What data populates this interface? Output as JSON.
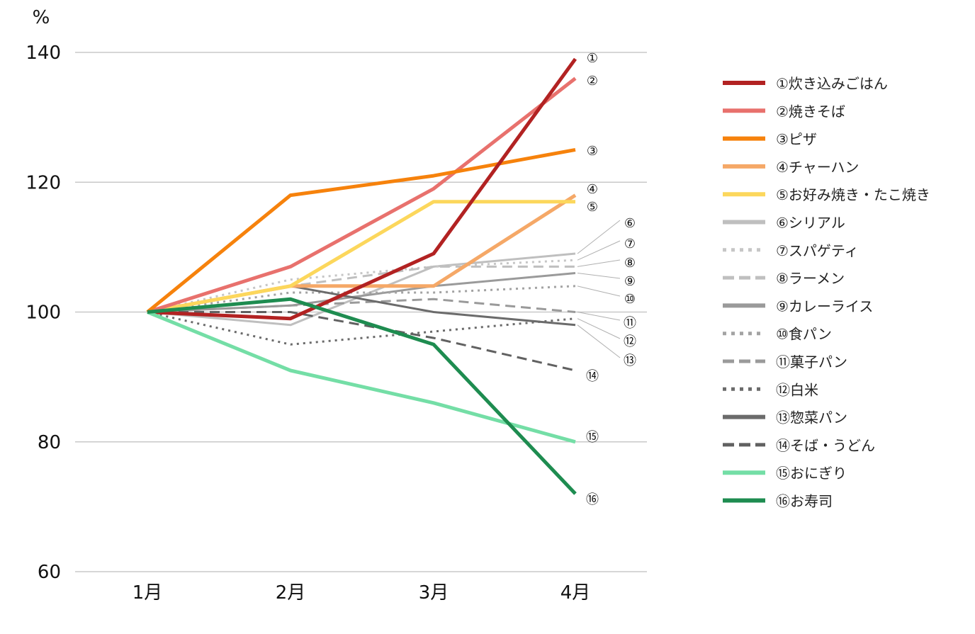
{
  "chart_data": {
    "type": "line",
    "title": "",
    "xlabel": "",
    "ylabel": "%",
    "ylim": [
      60,
      140
    ],
    "yticks": [
      "60",
      "80",
      "100",
      "120",
      "140"
    ],
    "categories": [
      "1月",
      "2月",
      "3月",
      "4月"
    ],
    "grid": "horizontal",
    "legend_position": "right",
    "series": [
      {
        "marker": "①",
        "name": "①炊き込みごはん",
        "values": [
          100,
          99,
          109,
          139
        ],
        "color": "#b22222",
        "style": "solid"
      },
      {
        "marker": "②",
        "name": "②焼きそば",
        "values": [
          100,
          107,
          119,
          136
        ],
        "color": "#e8716d",
        "style": "solid"
      },
      {
        "marker": "③",
        "name": "③ピザ",
        "values": [
          100,
          118,
          121,
          125
        ],
        "color": "#f6820c",
        "style": "solid"
      },
      {
        "marker": "④",
        "name": "④チャーハン",
        "values": [
          100,
          104,
          104,
          118
        ],
        "color": "#f5a867",
        "style": "solid"
      },
      {
        "marker": "⑤",
        "name": "⑤お好み焼き・たこ焼き",
        "values": [
          100,
          104,
          117,
          117
        ],
        "color": "#fcd75c",
        "style": "solid"
      },
      {
        "marker": "⑥",
        "name": "⑥シリアル",
        "values": [
          100,
          98,
          107,
          109
        ],
        "color": "#bfbfbf",
        "style": "solid"
      },
      {
        "marker": "⑦",
        "name": "⑦スパゲティ",
        "values": [
          100,
          105,
          107,
          108
        ],
        "color": "#c6c6c6",
        "style": "dotted"
      },
      {
        "marker": "⑧",
        "name": "⑧ラーメン",
        "values": [
          100,
          104,
          107,
          107
        ],
        "color": "#bfbfbf",
        "style": "dashed"
      },
      {
        "marker": "⑨",
        "name": "⑨カレーライス",
        "values": [
          100,
          101,
          104,
          106
        ],
        "color": "#9a9a9a",
        "style": "solid"
      },
      {
        "marker": "⑩",
        "name": "⑩食パン",
        "values": [
          100,
          103,
          103,
          104
        ],
        "color": "#a3a3a3",
        "style": "dotted"
      },
      {
        "marker": "⑪",
        "name": "⑪菓子パン",
        "values": [
          100,
          101,
          102,
          100
        ],
        "color": "#9a9a9a",
        "style": "dashed"
      },
      {
        "marker": "⑫",
        "name": "⑫白米",
        "values": [
          100,
          95,
          97,
          99
        ],
        "color": "#6b6b6b",
        "style": "dotted"
      },
      {
        "marker": "⑬",
        "name": "⑬惣菜パン",
        "values": [
          100,
          104,
          100,
          98
        ],
        "color": "#6b6b6b",
        "style": "solid"
      },
      {
        "marker": "⑭",
        "name": "⑭そば・うどん",
        "values": [
          100,
          100,
          96,
          91
        ],
        "color": "#616161",
        "style": "dashed"
      },
      {
        "marker": "⑮",
        "name": "⑮おにぎり",
        "values": [
          100,
          91,
          86,
          80
        ],
        "color": "#74dea6",
        "style": "solid"
      },
      {
        "marker": "⑯",
        "name": "⑯お寿司",
        "values": [
          100,
          102,
          95,
          72
        ],
        "color": "#1e8c50",
        "style": "solid"
      }
    ]
  }
}
